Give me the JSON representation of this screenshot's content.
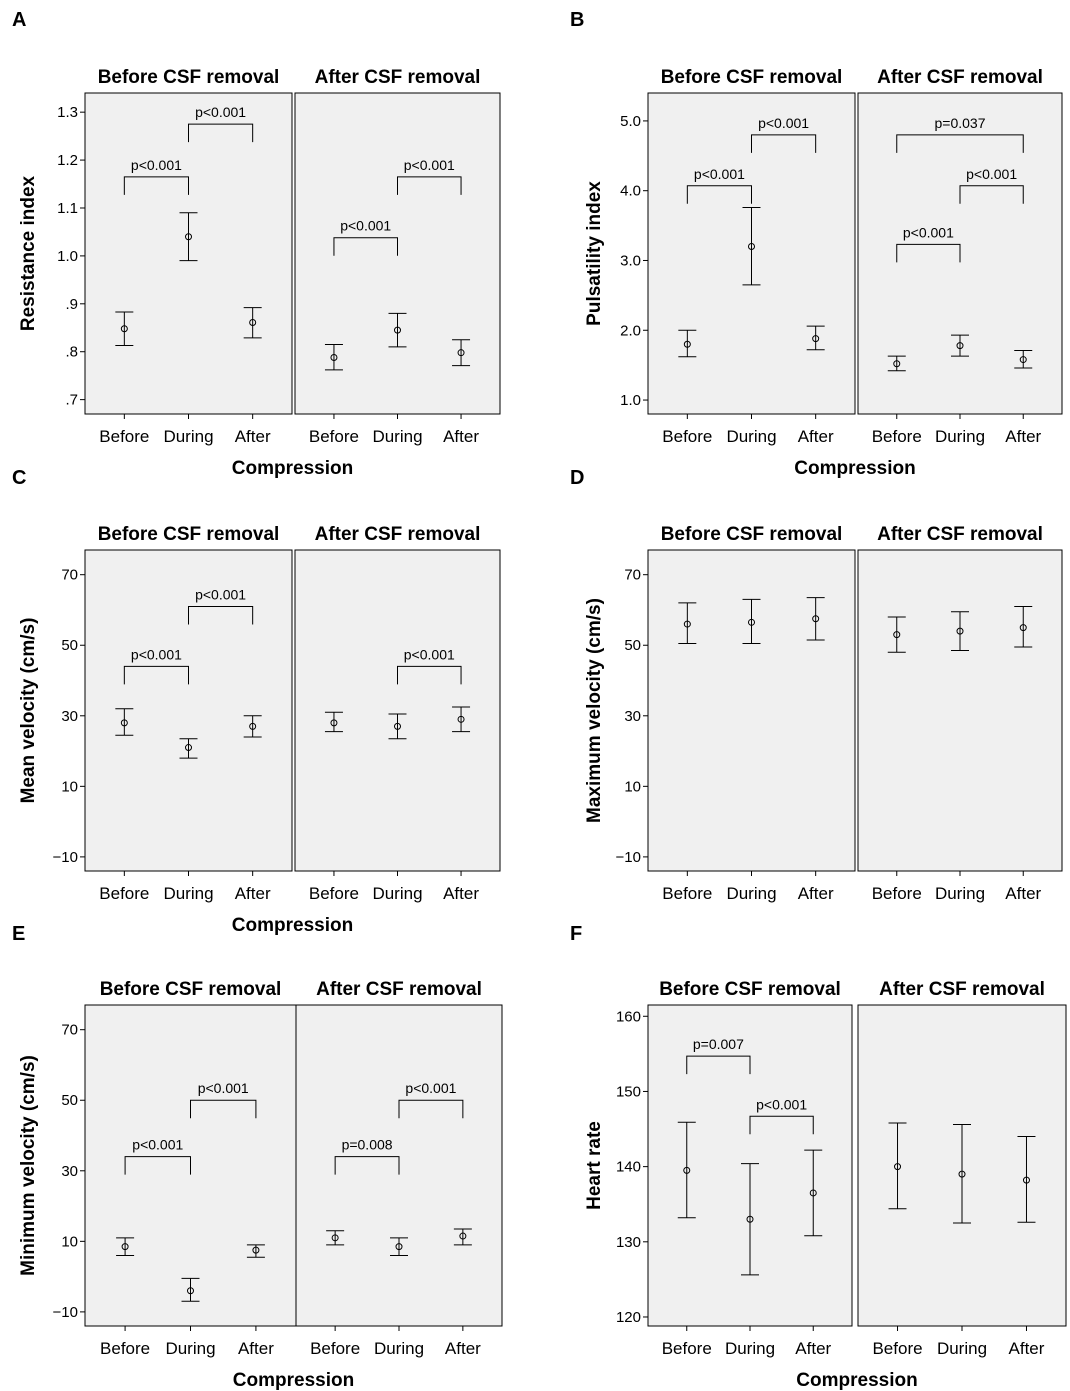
{
  "facets": [
    "Before CSF removal",
    "After CSF removal"
  ],
  "chart_data": [
    {
      "panel": "A",
      "type": "errorbar",
      "ylabel": "Resistance index",
      "xlabel": "Compression",
      "ylim": [
        0.67,
        1.34
      ],
      "yticks": [
        0.7,
        0.8,
        0.9,
        1.0,
        1.1,
        1.2,
        1.3
      ],
      "yticklabels": [
        ".7",
        ".8",
        ".9",
        "1.0",
        "1.1",
        "1.2",
        "1.3"
      ],
      "categories": [
        "Before",
        "During",
        "After"
      ],
      "groups": [
        {
          "facet": "Before CSF removal",
          "mean": [
            0.848,
            1.04,
            0.861
          ],
          "lower": [
            0.813,
            0.99,
            0.829
          ],
          "upper": [
            0.883,
            1.09,
            0.892
          ]
        },
        {
          "facet": "After CSF removal",
          "mean": [
            0.788,
            0.845,
            0.798
          ],
          "lower": [
            0.762,
            0.81,
            0.771
          ],
          "upper": [
            0.815,
            0.88,
            0.825
          ]
        }
      ],
      "annotations": [
        {
          "facet": 0,
          "from": 0,
          "to": 1,
          "y": 1.165,
          "text": "p<0.001"
        },
        {
          "facet": 0,
          "from": 1,
          "to": 2,
          "y": 1.275,
          "text": "p<0.001"
        },
        {
          "facet": 1,
          "from": 0,
          "to": 1,
          "y": 1.038,
          "text": "p<0.001"
        },
        {
          "facet": 1,
          "from": 1,
          "to": 2,
          "y": 1.165,
          "text": "p<0.001"
        }
      ]
    },
    {
      "panel": "B",
      "type": "errorbar",
      "ylabel": "Pulsatility index",
      "xlabel": "Compression",
      "ylim": [
        0.8,
        5.4
      ],
      "yticks": [
        1,
        2,
        3,
        4,
        5
      ],
      "yticklabels": [
        "1.0",
        "2.0",
        "3.0",
        "4.0",
        "5.0"
      ],
      "categories": [
        "Before",
        "During",
        "After"
      ],
      "groups": [
        {
          "facet": "Before CSF removal",
          "mean": [
            1.8,
            3.2,
            1.88
          ],
          "lower": [
            1.62,
            2.65,
            1.72
          ],
          "upper": [
            2.0,
            3.76,
            2.06
          ]
        },
        {
          "facet": "After CSF removal",
          "mean": [
            1.52,
            1.78,
            1.58
          ],
          "lower": [
            1.42,
            1.63,
            1.46
          ],
          "upper": [
            1.63,
            1.93,
            1.71
          ]
        }
      ],
      "annotations": [
        {
          "facet": 0,
          "from": 0,
          "to": 1,
          "y": 4.07,
          "text": "p<0.001"
        },
        {
          "facet": 0,
          "from": 1,
          "to": 2,
          "y": 4.8,
          "text": "p<0.001"
        },
        {
          "facet": 1,
          "from": 0,
          "to": 1,
          "y": 3.23,
          "text": "p<0.001"
        },
        {
          "facet": 1,
          "from": 1,
          "to": 2,
          "y": 4.07,
          "text": "p<0.001"
        },
        {
          "facet": 1,
          "from": 0,
          "to": 2,
          "y": 4.8,
          "text": "p=0.037"
        }
      ]
    },
    {
      "panel": "C",
      "type": "errorbar",
      "ylabel": "Mean velocity (cm/s)",
      "xlabel": "Compression",
      "ylim": [
        -14,
        77
      ],
      "yticks": [
        -10,
        10,
        30,
        50,
        70
      ],
      "yticklabels": [
        "−10",
        "10",
        "30",
        "50",
        "70"
      ],
      "categories": [
        "Before",
        "During",
        "After"
      ],
      "groups": [
        {
          "facet": "Before CSF removal",
          "mean": [
            28,
            21,
            27
          ],
          "lower": [
            24.5,
            18,
            24
          ],
          "upper": [
            32,
            23.5,
            30
          ]
        },
        {
          "facet": "After CSF removal",
          "mean": [
            28,
            27,
            29
          ],
          "lower": [
            25.5,
            23.5,
            25.5
          ],
          "upper": [
            31,
            30.5,
            32.5
          ]
        }
      ],
      "annotations": [
        {
          "facet": 0,
          "from": 0,
          "to": 1,
          "y": 44,
          "text": "p<0.001"
        },
        {
          "facet": 0,
          "from": 1,
          "to": 2,
          "y": 61,
          "text": "p<0.001"
        },
        {
          "facet": 1,
          "from": 1,
          "to": 2,
          "y": 44,
          "text": "p<0.001"
        }
      ]
    },
    {
      "panel": "D",
      "type": "errorbar",
      "ylabel": "Maximum velocity (cm/s)",
      "xlabel": "",
      "ylim": [
        -14,
        77
      ],
      "yticks": [
        -10,
        10,
        30,
        50,
        70
      ],
      "yticklabels": [
        "−10",
        "10",
        "30",
        "50",
        "70"
      ],
      "categories": [
        "Before",
        "During",
        "After"
      ],
      "groups": [
        {
          "facet": "Before CSF removal",
          "mean": [
            56,
            56.5,
            57.5
          ],
          "lower": [
            50.5,
            50.5,
            51.5
          ],
          "upper": [
            62,
            63,
            63.5
          ]
        },
        {
          "facet": "After CSF removal",
          "mean": [
            53,
            54,
            55
          ],
          "lower": [
            48,
            48.5,
            49.5
          ],
          "upper": [
            58,
            59.5,
            61
          ]
        }
      ],
      "annotations": []
    },
    {
      "panel": "E",
      "type": "errorbar",
      "ylabel": "Minimum velocity (cm/s)",
      "xlabel": "Compression",
      "ylim": [
        -14,
        77
      ],
      "yticks": [
        -10,
        10,
        30,
        50,
        70
      ],
      "yticklabels": [
        "−10",
        "10",
        "30",
        "50",
        "70"
      ],
      "categories": [
        "Before",
        "During",
        "After"
      ],
      "groups": [
        {
          "facet": "Before CSF removal",
          "mean": [
            8.5,
            -4,
            7.5
          ],
          "lower": [
            6,
            -7,
            5.5
          ],
          "upper": [
            11,
            -0.5,
            9
          ]
        },
        {
          "facet": "After CSF removal",
          "mean": [
            11,
            8.5,
            11.5
          ],
          "lower": [
            9,
            6,
            9
          ],
          "upper": [
            13,
            11,
            13.5
          ]
        }
      ],
      "annotations": [
        {
          "facet": 0,
          "from": 0,
          "to": 1,
          "y": 34,
          "text": "p<0.001"
        },
        {
          "facet": 0,
          "from": 1,
          "to": 2,
          "y": 50,
          "text": "p<0.001"
        },
        {
          "facet": 1,
          "from": 0,
          "to": 1,
          "y": 34,
          "text": "p=0.008"
        },
        {
          "facet": 1,
          "from": 1,
          "to": 2,
          "y": 50,
          "text": "p<0.001"
        }
      ]
    },
    {
      "panel": "F",
      "type": "errorbar",
      "ylabel": "Heart rate",
      "xlabel": "Compression",
      "ylim": [
        118.8,
        161.5
      ],
      "yticks": [
        120,
        130,
        140,
        150,
        160
      ],
      "yticklabels": [
        "120",
        "130",
        "140",
        "150",
        "160"
      ],
      "categories": [
        "Before",
        "During",
        "After"
      ],
      "groups": [
        {
          "facet": "Before CSF removal",
          "mean": [
            139.5,
            133,
            136.5
          ],
          "lower": [
            133.2,
            125.6,
            130.8
          ],
          "upper": [
            145.9,
            140.4,
            142.2
          ]
        },
        {
          "facet": "After CSF removal",
          "mean": [
            140,
            139,
            138.2
          ],
          "lower": [
            134.4,
            132.5,
            132.6
          ],
          "upper": [
            145.8,
            145.6,
            144
          ]
        }
      ],
      "annotations": [
        {
          "facet": 0,
          "from": 0,
          "to": 1,
          "y": 154.7,
          "text": "p=0.007"
        },
        {
          "facet": 0,
          "from": 1,
          "to": 2,
          "y": 146.7,
          "text": "p<0.001"
        }
      ]
    }
  ]
}
